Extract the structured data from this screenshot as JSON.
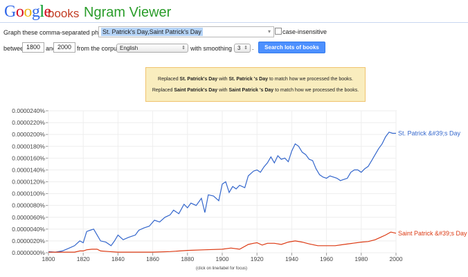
{
  "header": {
    "logo_letters": [
      {
        "ch": "G",
        "color": "#3369e8"
      },
      {
        "ch": "o",
        "color": "#d50f25"
      },
      {
        "ch": "o",
        "color": "#eeb211"
      },
      {
        "ch": "g",
        "color": "#3369e8"
      },
      {
        "ch": "l",
        "color": "#009925"
      },
      {
        "ch": "e",
        "color": "#d50f25"
      }
    ],
    "books": "books",
    "title": "Ngram Viewer"
  },
  "form": {
    "phrases_label": "Graph these comma-separated phrases:",
    "phrases_value": "St. Patrick's Day,Saint Patrick's Day",
    "case_label": "case-insensitive",
    "between_label": "between",
    "start_year": "1800",
    "and_label": "and",
    "end_year": "2000",
    "corpus_label": "from the corpus",
    "corpus_value": "English",
    "smoothing_label": "with smoothing of",
    "smoothing_value": "3",
    "search_button": "Search lots of books"
  },
  "notice": {
    "line1": [
      {
        "t": "Replaced ",
        "b": false
      },
      {
        "t": "St. Patrick's Day",
        "b": true
      },
      {
        "t": " with ",
        "b": false
      },
      {
        "t": "St. Patrick 's Day",
        "b": true
      },
      {
        "t": " to match how we processed the books.",
        "b": false
      }
    ],
    "line2": [
      {
        "t": "Replaced ",
        "b": false
      },
      {
        "t": "Saint Patrick's Day",
        "b": true
      },
      {
        "t": " with ",
        "b": false
      },
      {
        "t": "Saint Patrick 's Day",
        "b": true
      },
      {
        "t": " to match how we processed the books.",
        "b": false
      }
    ]
  },
  "caption": "(click on line/label for focus)",
  "chart_data": {
    "type": "line",
    "xlim": [
      1800,
      2000
    ],
    "ylim": [
      0,
      2.4e-06
    ],
    "x_ticks": [
      "1800",
      "1820",
      "1840",
      "1860",
      "1880",
      "1900",
      "1920",
      "1940",
      "1960",
      "1980",
      "2000"
    ],
    "y_ticks": [
      "0.0000000%",
      "0.0000020%",
      "0.0000040%",
      "0.0000060%",
      "0.0000080%",
      "0.0000100%",
      "0.0000120%",
      "0.0000140%",
      "0.0000160%",
      "0.0000180%",
      "0.0000200%",
      "0.0000220%",
      "0.0000240%"
    ],
    "grid": true,
    "series": [
      {
        "name": "St. Patrick &#39;s Day",
        "color": "#3366cc",
        "points": [
          [
            1800,
            0.02
          ],
          [
            1804,
            0.01
          ],
          [
            1808,
            0.03
          ],
          [
            1812,
            0.08
          ],
          [
            1815,
            0.12
          ],
          [
            1818,
            0.2
          ],
          [
            1820,
            0.17
          ],
          [
            1822,
            0.36
          ],
          [
            1824,
            0.38
          ],
          [
            1826,
            0.4
          ],
          [
            1828,
            0.3
          ],
          [
            1830,
            0.2
          ],
          [
            1833,
            0.18
          ],
          [
            1836,
            0.12
          ],
          [
            1838,
            0.2
          ],
          [
            1840,
            0.3
          ],
          [
            1843,
            0.22
          ],
          [
            1846,
            0.26
          ],
          [
            1850,
            0.3
          ],
          [
            1852,
            0.38
          ],
          [
            1855,
            0.42
          ],
          [
            1858,
            0.45
          ],
          [
            1861,
            0.55
          ],
          [
            1864,
            0.52
          ],
          [
            1867,
            0.6
          ],
          [
            1870,
            0.64
          ],
          [
            1872,
            0.72
          ],
          [
            1875,
            0.66
          ],
          [
            1878,
            0.82
          ],
          [
            1880,
            0.76
          ],
          [
            1882,
            0.84
          ],
          [
            1885,
            0.8
          ],
          [
            1888,
            0.92
          ],
          [
            1890,
            0.68
          ],
          [
            1892,
            0.98
          ],
          [
            1895,
            0.96
          ],
          [
            1898,
            0.88
          ],
          [
            1900,
            1.16
          ],
          [
            1902,
            1.2
          ],
          [
            1904,
            1.02
          ],
          [
            1906,
            1.12
          ],
          [
            1908,
            1.08
          ],
          [
            1910,
            1.14
          ],
          [
            1913,
            1.1
          ],
          [
            1915,
            1.3
          ],
          [
            1918,
            1.38
          ],
          [
            1920,
            1.4
          ],
          [
            1922,
            1.36
          ],
          [
            1924,
            1.45
          ],
          [
            1926,
            1.52
          ],
          [
            1928,
            1.62
          ],
          [
            1930,
            1.52
          ],
          [
            1932,
            1.64
          ],
          [
            1934,
            1.58
          ],
          [
            1936,
            1.6
          ],
          [
            1938,
            1.54
          ],
          [
            1940,
            1.72
          ],
          [
            1942,
            1.84
          ],
          [
            1944,
            1.8
          ],
          [
            1946,
            1.7
          ],
          [
            1948,
            1.66
          ],
          [
            1950,
            1.58
          ],
          [
            1952,
            1.56
          ],
          [
            1954,
            1.42
          ],
          [
            1956,
            1.32
          ],
          [
            1958,
            1.28
          ],
          [
            1960,
            1.26
          ],
          [
            1962,
            1.3
          ],
          [
            1964,
            1.28
          ],
          [
            1966,
            1.26
          ],
          [
            1968,
            1.22
          ],
          [
            1970,
            1.24
          ],
          [
            1972,
            1.26
          ],
          [
            1974,
            1.36
          ],
          [
            1976,
            1.4
          ],
          [
            1978,
            1.4
          ],
          [
            1980,
            1.36
          ],
          [
            1982,
            1.42
          ],
          [
            1984,
            1.46
          ],
          [
            1986,
            1.56
          ],
          [
            1988,
            1.66
          ],
          [
            1990,
            1.76
          ],
          [
            1992,
            1.84
          ],
          [
            1994,
            1.96
          ],
          [
            1996,
            2.04
          ],
          [
            1998,
            2.02
          ],
          [
            2000,
            2.02
          ]
        ]
      },
      {
        "name": "Saint Patrick &#39;s Day",
        "color": "#dc3912",
        "points": [
          [
            1800,
            0.01
          ],
          [
            1815,
            0.01
          ],
          [
            1818,
            0.03
          ],
          [
            1820,
            0.03
          ],
          [
            1822,
            0.05
          ],
          [
            1825,
            0.06
          ],
          [
            1828,
            0.06
          ],
          [
            1830,
            0.03
          ],
          [
            1835,
            0.02
          ],
          [
            1840,
            0.01
          ],
          [
            1850,
            0.01
          ],
          [
            1860,
            0.01
          ],
          [
            1870,
            0.02
          ],
          [
            1880,
            0.04
          ],
          [
            1890,
            0.05
          ],
          [
            1900,
            0.06
          ],
          [
            1905,
            0.08
          ],
          [
            1910,
            0.06
          ],
          [
            1915,
            0.14
          ],
          [
            1918,
            0.16
          ],
          [
            1920,
            0.17
          ],
          [
            1923,
            0.13
          ],
          [
            1926,
            0.16
          ],
          [
            1930,
            0.16
          ],
          [
            1934,
            0.14
          ],
          [
            1938,
            0.18
          ],
          [
            1942,
            0.2
          ],
          [
            1946,
            0.18
          ],
          [
            1950,
            0.15
          ],
          [
            1955,
            0.12
          ],
          [
            1960,
            0.12
          ],
          [
            1965,
            0.12
          ],
          [
            1970,
            0.14
          ],
          [
            1975,
            0.16
          ],
          [
            1980,
            0.18
          ],
          [
            1984,
            0.19
          ],
          [
            1988,
            0.22
          ],
          [
            1991,
            0.26
          ],
          [
            1994,
            0.3
          ],
          [
            1997,
            0.35
          ],
          [
            2000,
            0.33
          ]
        ]
      }
    ]
  }
}
